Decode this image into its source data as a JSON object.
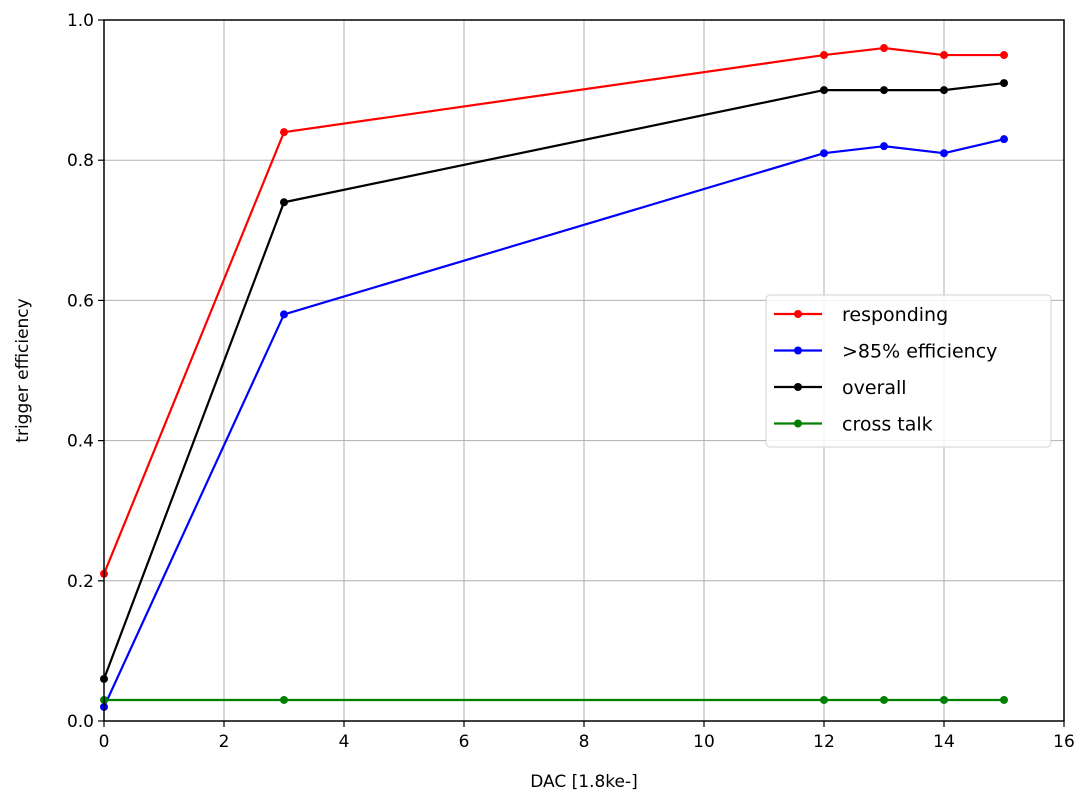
{
  "chart_data": {
    "type": "line",
    "xlabel": "DAC [1.8ke-]",
    "ylabel": "trigger efficiency",
    "xlim": [
      0,
      16
    ],
    "ylim": [
      0.0,
      1.0
    ],
    "xticks": [
      0,
      2,
      4,
      6,
      8,
      10,
      12,
      14,
      16
    ],
    "yticks": [
      0.0,
      0.2,
      0.4,
      0.6,
      0.8,
      1.0
    ],
    "xtick_labels": [
      "0",
      "2",
      "4",
      "6",
      "8",
      "10",
      "12",
      "14",
      "16"
    ],
    "ytick_labels": [
      "0.0",
      "0.2",
      "0.4",
      "0.6",
      "0.8",
      "1.0"
    ],
    "grid": true,
    "legend_position": "center-right",
    "x": [
      0,
      3,
      12,
      13,
      14,
      15
    ],
    "series": [
      {
        "name": "responding",
        "color": "#ff0000",
        "values": [
          0.21,
          0.84,
          0.95,
          0.96,
          0.95,
          0.95
        ]
      },
      {
        "name": ">85% efficiency",
        "color": "#0000ff",
        "values": [
          0.02,
          0.58,
          0.81,
          0.82,
          0.81,
          0.83
        ]
      },
      {
        "name": "overall",
        "color": "#000000",
        "values": [
          0.06,
          0.74,
          0.9,
          0.9,
          0.9,
          0.91
        ]
      },
      {
        "name": "cross talk",
        "color": "#008000",
        "values": [
          0.03,
          0.03,
          0.03,
          0.03,
          0.03,
          0.03
        ]
      }
    ]
  }
}
